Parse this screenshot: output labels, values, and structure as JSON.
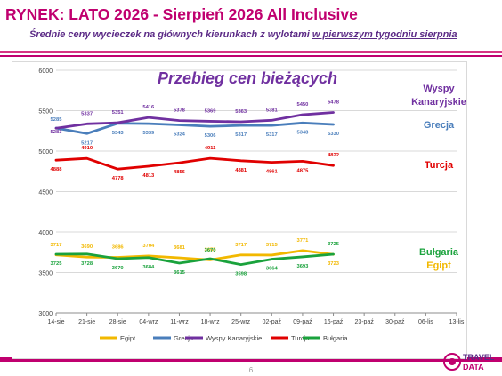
{
  "header": {
    "title": "RYNEK: LATO 2026 - Sierpień 2026 All Inclusive",
    "subtitle_main": "Średnie ceny wycieczek na głównych kierunkach  z wylotami ",
    "subtitle_underlined": "w pierwszym tygodniu sierpnia"
  },
  "footer": {
    "page_number": "6",
    "logo_text_top": "TRAVEL",
    "logo_text_bottom": "DATA"
  },
  "colors": {
    "accent": "#c0006f",
    "subtitle": "#5b2a86",
    "band_top": "#d63584",
    "band_bottom": "#c0006f"
  },
  "chart_data": {
    "type": "line",
    "title": "Przebieg cen bieżących",
    "categories": [
      "14-sie",
      "21-sie",
      "28-sie",
      "04-wrz",
      "11-wrz",
      "18-wrz",
      "25-wrz",
      "02-paź",
      "09-paź",
      "16-paź",
      "23-paź",
      "30-paź",
      "06-lis",
      "13-lis"
    ],
    "ylim": [
      3000,
      6000
    ],
    "yticks": [
      3000,
      3500,
      4000,
      4500,
      5000,
      5500,
      6000
    ],
    "grid": true,
    "legend_position": "bottom",
    "series": [
      {
        "name": "Egipt",
        "color": "#f2b800",
        "values": [
          3717,
          3690,
          3686,
          3704,
          3681,
          3655,
          3717,
          3715,
          3771,
          3723,
          null,
          null,
          null,
          null
        ]
      },
      {
        "name": "Grecja",
        "color": "#4a7ebb",
        "values": [
          5285,
          5217,
          5343,
          5339,
          5324,
          5306,
          5317,
          5317,
          5348,
          5330,
          null,
          null,
          null,
          null
        ]
      },
      {
        "name": "Wyspy Kanaryjskie",
        "color": "#7030a0",
        "values": [
          5283,
          5337,
          5351,
          5416,
          5378,
          5369,
          5363,
          5381,
          5450,
          5478,
          null,
          null,
          null,
          null
        ]
      },
      {
        "name": "Turcja",
        "color": "#e00000",
        "values": [
          4888,
          4910,
          4778,
          4813,
          4856,
          4911,
          4881,
          4861,
          4875,
          4822,
          null,
          null,
          null,
          null
        ]
      },
      {
        "name": "Bułgaria",
        "color": "#1aa23c",
        "values": [
          3725,
          3728,
          3670,
          3684,
          3615,
          3670,
          3598,
          3664,
          3693,
          3725,
          null,
          null,
          null,
          null
        ]
      }
    ],
    "end_labels": [
      {
        "text": "Wyspy",
        "color": "#7030a0"
      },
      {
        "text": "Kanaryjskie",
        "color": "#7030a0"
      },
      {
        "text": "Grecja",
        "color": "#4a7ebb"
      },
      {
        "text": "Turcja",
        "color": "#e00000"
      },
      {
        "text": "Bułgaria",
        "color": "#1aa23c"
      },
      {
        "text": "Egipt",
        "color": "#f2b800"
      }
    ]
  }
}
